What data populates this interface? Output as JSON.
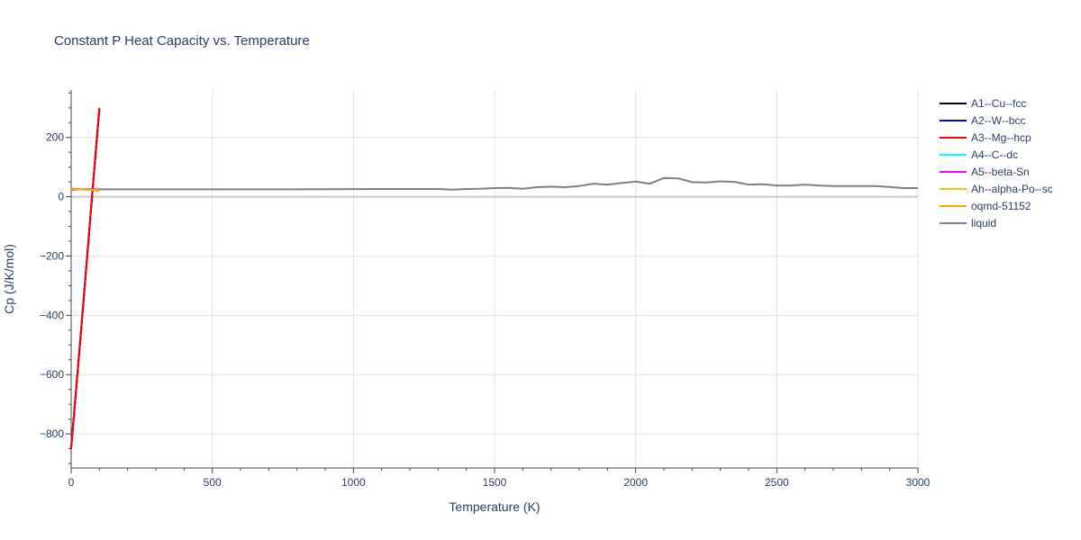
{
  "chart_data": {
    "type": "line",
    "title": "Constant P Heat Capacity vs. Temperature",
    "xlabel": "Temperature (K)",
    "ylabel": "Cp (J/K/mol)",
    "xlim": [
      0,
      3000
    ],
    "ylim": [
      -915,
      360
    ],
    "x_ticks": [
      0,
      500,
      1000,
      1500,
      2000,
      2500,
      3000
    ],
    "x_tick_labels": [
      "0",
      "500",
      "1000",
      "1500",
      "2000",
      "2500",
      "3000"
    ],
    "y_ticks": [
      -800,
      -600,
      -400,
      -200,
      0,
      200
    ],
    "y_tick_labels": [
      "−800",
      "−600",
      "−400",
      "−200",
      "0",
      "200"
    ],
    "grid": true,
    "legend_position": "right",
    "series": [
      {
        "name": "A1--Cu--fcc",
        "color": "#000000",
        "x": [
          0,
          25,
          50,
          75,
          100
        ],
        "y": [
          -850,
          -570,
          -280,
          10,
          295
        ]
      },
      {
        "name": "A2--W--bcc",
        "color": "#0000ff",
        "x": [
          0,
          25,
          50,
          75,
          100
        ],
        "y": [
          -845,
          -565,
          -275,
          15,
          298
        ]
      },
      {
        "name": "A3--Mg--hcp",
        "color": "#ff0000",
        "x": [
          0,
          25,
          50,
          75,
          100
        ],
        "y": [
          -848,
          -568,
          -278,
          12,
          300
        ]
      },
      {
        "name": "A4--C--dc",
        "color": "#00ffff",
        "x": [
          0,
          25,
          50,
          75,
          100
        ],
        "y": [
          24,
          24.5,
          25,
          25,
          25
        ]
      },
      {
        "name": "A5--beta-Sn",
        "color": "#ff00ff",
        "x": [
          0,
          25,
          50,
          75,
          100
        ],
        "y": [
          24,
          24.5,
          25,
          25,
          25
        ]
      },
      {
        "name": "Ah--alpha-Po--sc",
        "color": "#ffbf00",
        "x": [
          0,
          25,
          50,
          75,
          100
        ],
        "y": [
          26,
          25,
          24,
          23,
          22
        ]
      },
      {
        "name": "oqmd-51152",
        "color": "#ffa500",
        "x": [
          0,
          25,
          50,
          75,
          100
        ],
        "y": [
          28,
          26,
          24,
          22,
          20
        ]
      },
      {
        "name": "liquid",
        "color": "#808080",
        "x": [
          0,
          50,
          100,
          200,
          300,
          500,
          700,
          900,
          1100,
          1300,
          1350,
          1400,
          1450,
          1500,
          1550,
          1600,
          1650,
          1700,
          1750,
          1800,
          1850,
          1900,
          1950,
          2000,
          2050,
          2100,
          2150,
          2200,
          2250,
          2300,
          2350,
          2400,
          2450,
          2500,
          2550,
          2600,
          2650,
          2700,
          2750,
          2800,
          2850,
          2900,
          2950,
          3000
        ],
        "y": [
          25,
          25,
          25,
          25,
          25,
          25,
          25,
          25.5,
          26,
          26,
          24,
          26,
          27,
          29,
          30,
          27,
          32,
          34,
          32,
          36,
          44,
          41,
          46,
          51,
          44,
          63,
          62,
          49,
          48,
          52,
          50,
          41,
          42,
          38,
          38,
          41,
          38,
          36,
          36,
          36,
          36,
          33,
          29,
          29
        ]
      }
    ]
  }
}
